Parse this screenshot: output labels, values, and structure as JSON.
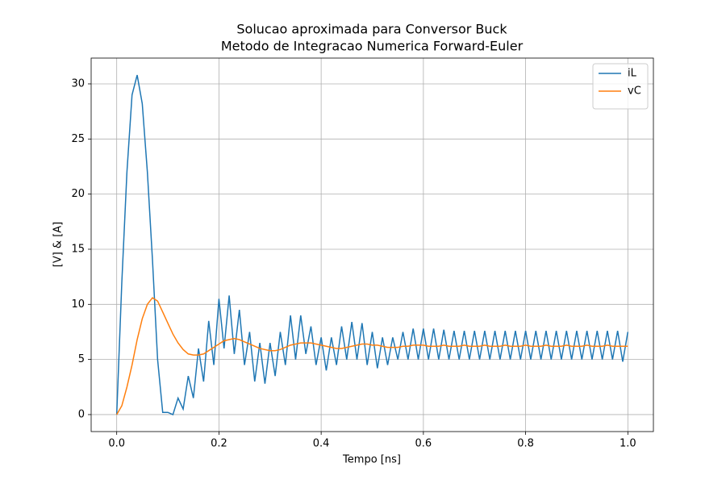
{
  "chart_data": {
    "type": "line",
    "title": "Solucao aproximada para Conversor Buck",
    "subtitle": "Metodo de Integracao Numerica Forward-Euler",
    "x_label": "Tempo [ns]",
    "y_label": "[V] & [A]",
    "xlim": [
      -0.05,
      1.05
    ],
    "ylim": [
      -1.54,
      32.34
    ],
    "xticks": [
      {
        "value": 0,
        "label": "0.0"
      },
      0.2,
      0.4,
      0.6,
      0.8,
      {
        "value": 1,
        "label": "1.0"
      }
    ],
    "yticks": [
      0,
      5,
      10,
      15,
      20,
      25,
      30
    ],
    "grid": true,
    "legend": "upper right",
    "x": [
      0,
      0.01,
      0.02,
      0.03,
      0.04,
      0.05,
      0.06,
      0.07,
      0.08,
      0.09,
      0.1,
      0.11,
      0.12,
      0.13,
      0.14,
      0.15,
      0.16,
      0.17,
      0.18,
      0.19,
      0.2,
      0.21,
      0.22,
      0.23,
      0.24,
      0.25,
      0.26,
      0.27,
      0.28,
      0.29,
      0.3,
      0.31,
      0.32,
      0.33,
      0.34,
      0.35,
      0.36,
      0.37,
      0.38,
      0.39,
      0.4,
      0.41,
      0.42,
      0.43,
      0.44,
      0.45,
      0.46,
      0.47,
      0.48,
      0.49,
      0.5,
      0.51,
      0.52,
      0.53,
      0.54,
      0.55,
      0.56,
      0.57,
      0.58,
      0.59,
      0.6,
      0.61,
      0.62,
      0.63,
      0.64,
      0.65,
      0.66,
      0.67,
      0.68,
      0.69,
      0.7,
      0.71,
      0.72,
      0.73,
      0.74,
      0.75,
      0.76,
      0.77,
      0.78,
      0.79,
      0.8,
      0.81,
      0.82,
      0.83,
      0.84,
      0.85,
      0.86,
      0.87,
      0.88,
      0.89,
      0.9,
      0.91,
      0.92,
      0.93,
      0.94,
      0.95,
      0.96,
      0.97,
      0.98,
      0.99,
      1
    ],
    "series": [
      {
        "name": "iL",
        "color": "#1f77b4",
        "values": [
          0,
          12,
          22,
          29,
          30.8,
          28.2,
          22,
          14,
          5,
          0.2,
          0.2,
          0,
          1.5,
          0.5,
          3.5,
          1.5,
          6,
          3,
          8.5,
          4.5,
          10.5,
          6,
          10.8,
          5.5,
          9.5,
          4.5,
          7.5,
          3,
          6.5,
          2.8,
          6.5,
          3.5,
          7.5,
          4.5,
          9,
          5,
          9,
          5.5,
          8,
          4.5,
          7,
          4,
          7,
          4.5,
          8,
          5,
          8.4,
          5,
          8.3,
          4.5,
          7.5,
          4.2,
          7,
          4.5,
          7,
          5,
          7.5,
          5,
          7.8,
          5,
          7.8,
          5,
          7.8,
          5,
          7.7,
          5,
          7.6,
          5,
          7.6,
          5,
          7.6,
          5,
          7.6,
          5,
          7.6,
          5,
          7.6,
          5,
          7.6,
          5,
          7.6,
          5,
          7.6,
          5,
          7.6,
          5,
          7.6,
          5,
          7.6,
          5,
          7.6,
          5,
          7.6,
          5,
          7.6,
          5,
          7.6,
          5,
          7.6,
          4.8,
          7.5
        ]
      },
      {
        "name": "vC",
        "color": "#ff7f0e",
        "values": [
          0,
          0.8,
          2.5,
          4.5,
          6.8,
          8.7,
          10,
          10.6,
          10.3,
          9.3,
          8.3,
          7.3,
          6.5,
          5.9,
          5.5,
          5.4,
          5.4,
          5.5,
          5.8,
          6.1,
          6.4,
          6.7,
          6.8,
          6.9,
          6.8,
          6.6,
          6.4,
          6.2,
          6,
          5.9,
          5.8,
          5.8,
          5.9,
          6.1,
          6.3,
          6.4,
          6.5,
          6.5,
          6.5,
          6.4,
          6.3,
          6.2,
          6.1,
          6,
          6,
          6.1,
          6.2,
          6.3,
          6.4,
          6.4,
          6.3,
          6.3,
          6.2,
          6.1,
          6.1,
          6.1,
          6.2,
          6.2,
          6.3,
          6.3,
          6.3,
          6.2,
          6.2,
          6.2,
          6.3,
          6.2,
          6.2,
          6.2,
          6.3,
          6.2,
          6.2,
          6.2,
          6.3,
          6.2,
          6.2,
          6.2,
          6.3,
          6.2,
          6.2,
          6.2,
          6.3,
          6.2,
          6.2,
          6.2,
          6.3,
          6.2,
          6.2,
          6.2,
          6.3,
          6.2,
          6.2,
          6.2,
          6.3,
          6.2,
          6.2,
          6.2,
          6.3,
          6.2,
          6.2,
          6.2,
          6.2
        ]
      }
    ]
  }
}
